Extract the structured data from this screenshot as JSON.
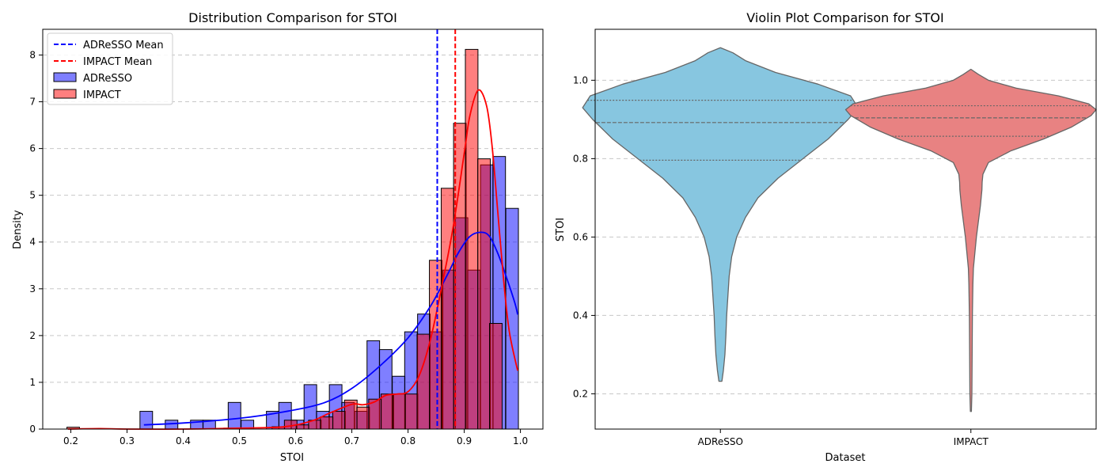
{
  "colors": {
    "adresso": "#0000ff",
    "impact": "#ff0000",
    "adresso_violin": "#87c6e0",
    "impact_violin": "#e88282",
    "violin_edge": "#666666",
    "grid": "#b0b0b0"
  },
  "chart_data": [
    {
      "type": "histogram",
      "title": "Distribution Comparison for STOI",
      "xlabel": "STOI",
      "ylabel": "Density",
      "xlim": [
        0.15,
        1.04
      ],
      "ylim": [
        0,
        8.55
      ],
      "xticks": [
        0.2,
        0.3,
        0.4,
        0.5,
        0.6,
        0.7,
        0.8,
        0.9,
        1.0
      ],
      "yticks": [
        0,
        1,
        2,
        3,
        4,
        5,
        6,
        7,
        8
      ],
      "grid": "y-dashed",
      "legend_placement": "upper-left",
      "legend": {
        "adresso_mean": "ADReSSO Mean",
        "impact_mean": "IMPACT Mean",
        "adresso": "ADReSSO",
        "impact": "IMPACT"
      },
      "adresso_mean": 0.852,
      "impact_mean": 0.884,
      "bin_width": 0.0224,
      "series": [
        {
          "name": "ADReSSO",
          "bin_starts": [
            0.323,
            0.346,
            0.368,
            0.39,
            0.413,
            0.435,
            0.458,
            0.48,
            0.503,
            0.525,
            0.548,
            0.57,
            0.592,
            0.615,
            0.637,
            0.66,
            0.682,
            0.705,
            0.727,
            0.749,
            0.772,
            0.794,
            0.817,
            0.839,
            0.862,
            0.884,
            0.906,
            0.929,
            0.951,
            0.974
          ],
          "values": [
            0.38,
            0,
            0.19,
            0,
            0.19,
            0.19,
            0,
            0.57,
            0.19,
            0,
            0.38,
            0.57,
            0.19,
            0.95,
            0.38,
            0.95,
            0.57,
            0.38,
            1.89,
            1.7,
            1.13,
            2.08,
            2.46,
            2.08,
            3.4,
            4.52,
            3.4,
            5.65,
            5.83,
            4.72
          ]
        },
        {
          "name": "IMPACT",
          "bin_starts": [
            0.193,
            0.214,
            0.236,
            0.257,
            0.279,
            0.3,
            0.322,
            0.343,
            0.365,
            0.386,
            0.408,
            0.429,
            0.451,
            0.472,
            0.494,
            0.515,
            0.537,
            0.558,
            0.58,
            0.601,
            0.623,
            0.644,
            0.666,
            0.687,
            0.709,
            0.73,
            0.752,
            0.773,
            0.795,
            0.816,
            0.838,
            0.859,
            0.881,
            0.902,
            0.924,
            0.945,
            0.967
          ],
          "values": [
            0.04,
            0,
            0,
            0,
            0,
            0,
            0,
            0,
            0,
            0,
            0,
            0,
            0,
            0.02,
            0,
            0,
            0,
            0.05,
            0.19,
            0.09,
            0.19,
            0.26,
            0.38,
            0.62,
            0.47,
            0.64,
            0.75,
            0.75,
            0.75,
            2.03,
            3.61,
            5.15,
            6.54,
            8.12,
            5.78,
            2.26,
            0
          ]
        }
      ],
      "kde": [
        {
          "name": "ADReSSO",
          "x": [
            0.33,
            0.4,
            0.5,
            0.58,
            0.65,
            0.7,
            0.75,
            0.8,
            0.84,
            0.87,
            0.89,
            0.91,
            0.93,
            0.945,
            0.96,
            0.975,
            0.99,
            0.995
          ],
          "y": [
            0.09,
            0.13,
            0.23,
            0.37,
            0.56,
            0.87,
            1.35,
            1.95,
            2.63,
            3.3,
            3.78,
            4.12,
            4.21,
            4.12,
            3.75,
            3.25,
            2.7,
            2.45
          ]
        },
        {
          "name": "IMPACT",
          "x": [
            0.195,
            0.25,
            0.3,
            0.4,
            0.5,
            0.58,
            0.63,
            0.66,
            0.7,
            0.72,
            0.74,
            0.76,
            0.78,
            0.8,
            0.82,
            0.84,
            0.86,
            0.88,
            0.9,
            0.91,
            0.925,
            0.94,
            0.95,
            0.96,
            0.97,
            0.98,
            0.995
          ],
          "y": [
            0,
            0.01,
            0,
            0,
            0.02,
            0.05,
            0.18,
            0.34,
            0.53,
            0.52,
            0.58,
            0.72,
            0.75,
            0.8,
            1.15,
            1.92,
            3.05,
            4.3,
            5.9,
            6.7,
            7.25,
            6.9,
            6.0,
            4.6,
            3.2,
            2.1,
            1.25
          ]
        }
      ]
    },
    {
      "type": "violin",
      "title": "Violin Plot Comparison for STOI",
      "xlabel": "Dataset",
      "ylabel": "STOI",
      "ylim": [
        0.11,
        1.13
      ],
      "yticks": [
        0.2,
        0.4,
        0.6,
        0.8,
        1.0
      ],
      "grid": "y-dashed",
      "categories": [
        "ADReSSO",
        "IMPACT"
      ],
      "violins": [
        {
          "name": "ADReSSO",
          "quartiles": [
            0.796,
            0.892,
            0.949
          ],
          "shape_y": [
            0.232,
            0.26,
            0.3,
            0.35,
            0.4,
            0.45,
            0.5,
            0.55,
            0.6,
            0.65,
            0.7,
            0.75,
            0.8,
            0.85,
            0.9,
            0.93,
            0.96,
            0.99,
            1.02,
            1.05,
            1.07,
            1.083
          ],
          "shape_w": [
            0.006,
            0.012,
            0.018,
            0.022,
            0.025,
            0.03,
            0.035,
            0.045,
            0.065,
            0.1,
            0.15,
            0.23,
            0.33,
            0.43,
            0.51,
            0.55,
            0.52,
            0.39,
            0.22,
            0.1,
            0.05,
            0.0
          ]
        },
        {
          "name": "IMPACT",
          "quartiles": [
            0.857,
            0.904,
            0.935
          ],
          "shape_y": [
            0.155,
            0.2,
            0.3,
            0.4,
            0.48,
            0.52,
            0.56,
            0.6,
            0.64,
            0.68,
            0.72,
            0.74,
            0.76,
            0.79,
            0.82,
            0.85,
            0.88,
            0.91,
            0.925,
            0.94,
            0.96,
            0.98,
            1.0,
            1.015,
            1.028
          ],
          "shape_w": [
            0.002,
            0.004,
            0.005,
            0.006,
            0.008,
            0.01,
            0.016,
            0.022,
            0.03,
            0.038,
            0.044,
            0.045,
            0.048,
            0.07,
            0.16,
            0.29,
            0.4,
            0.48,
            0.5,
            0.47,
            0.35,
            0.18,
            0.07,
            0.03,
            0.0
          ]
        }
      ]
    }
  ]
}
